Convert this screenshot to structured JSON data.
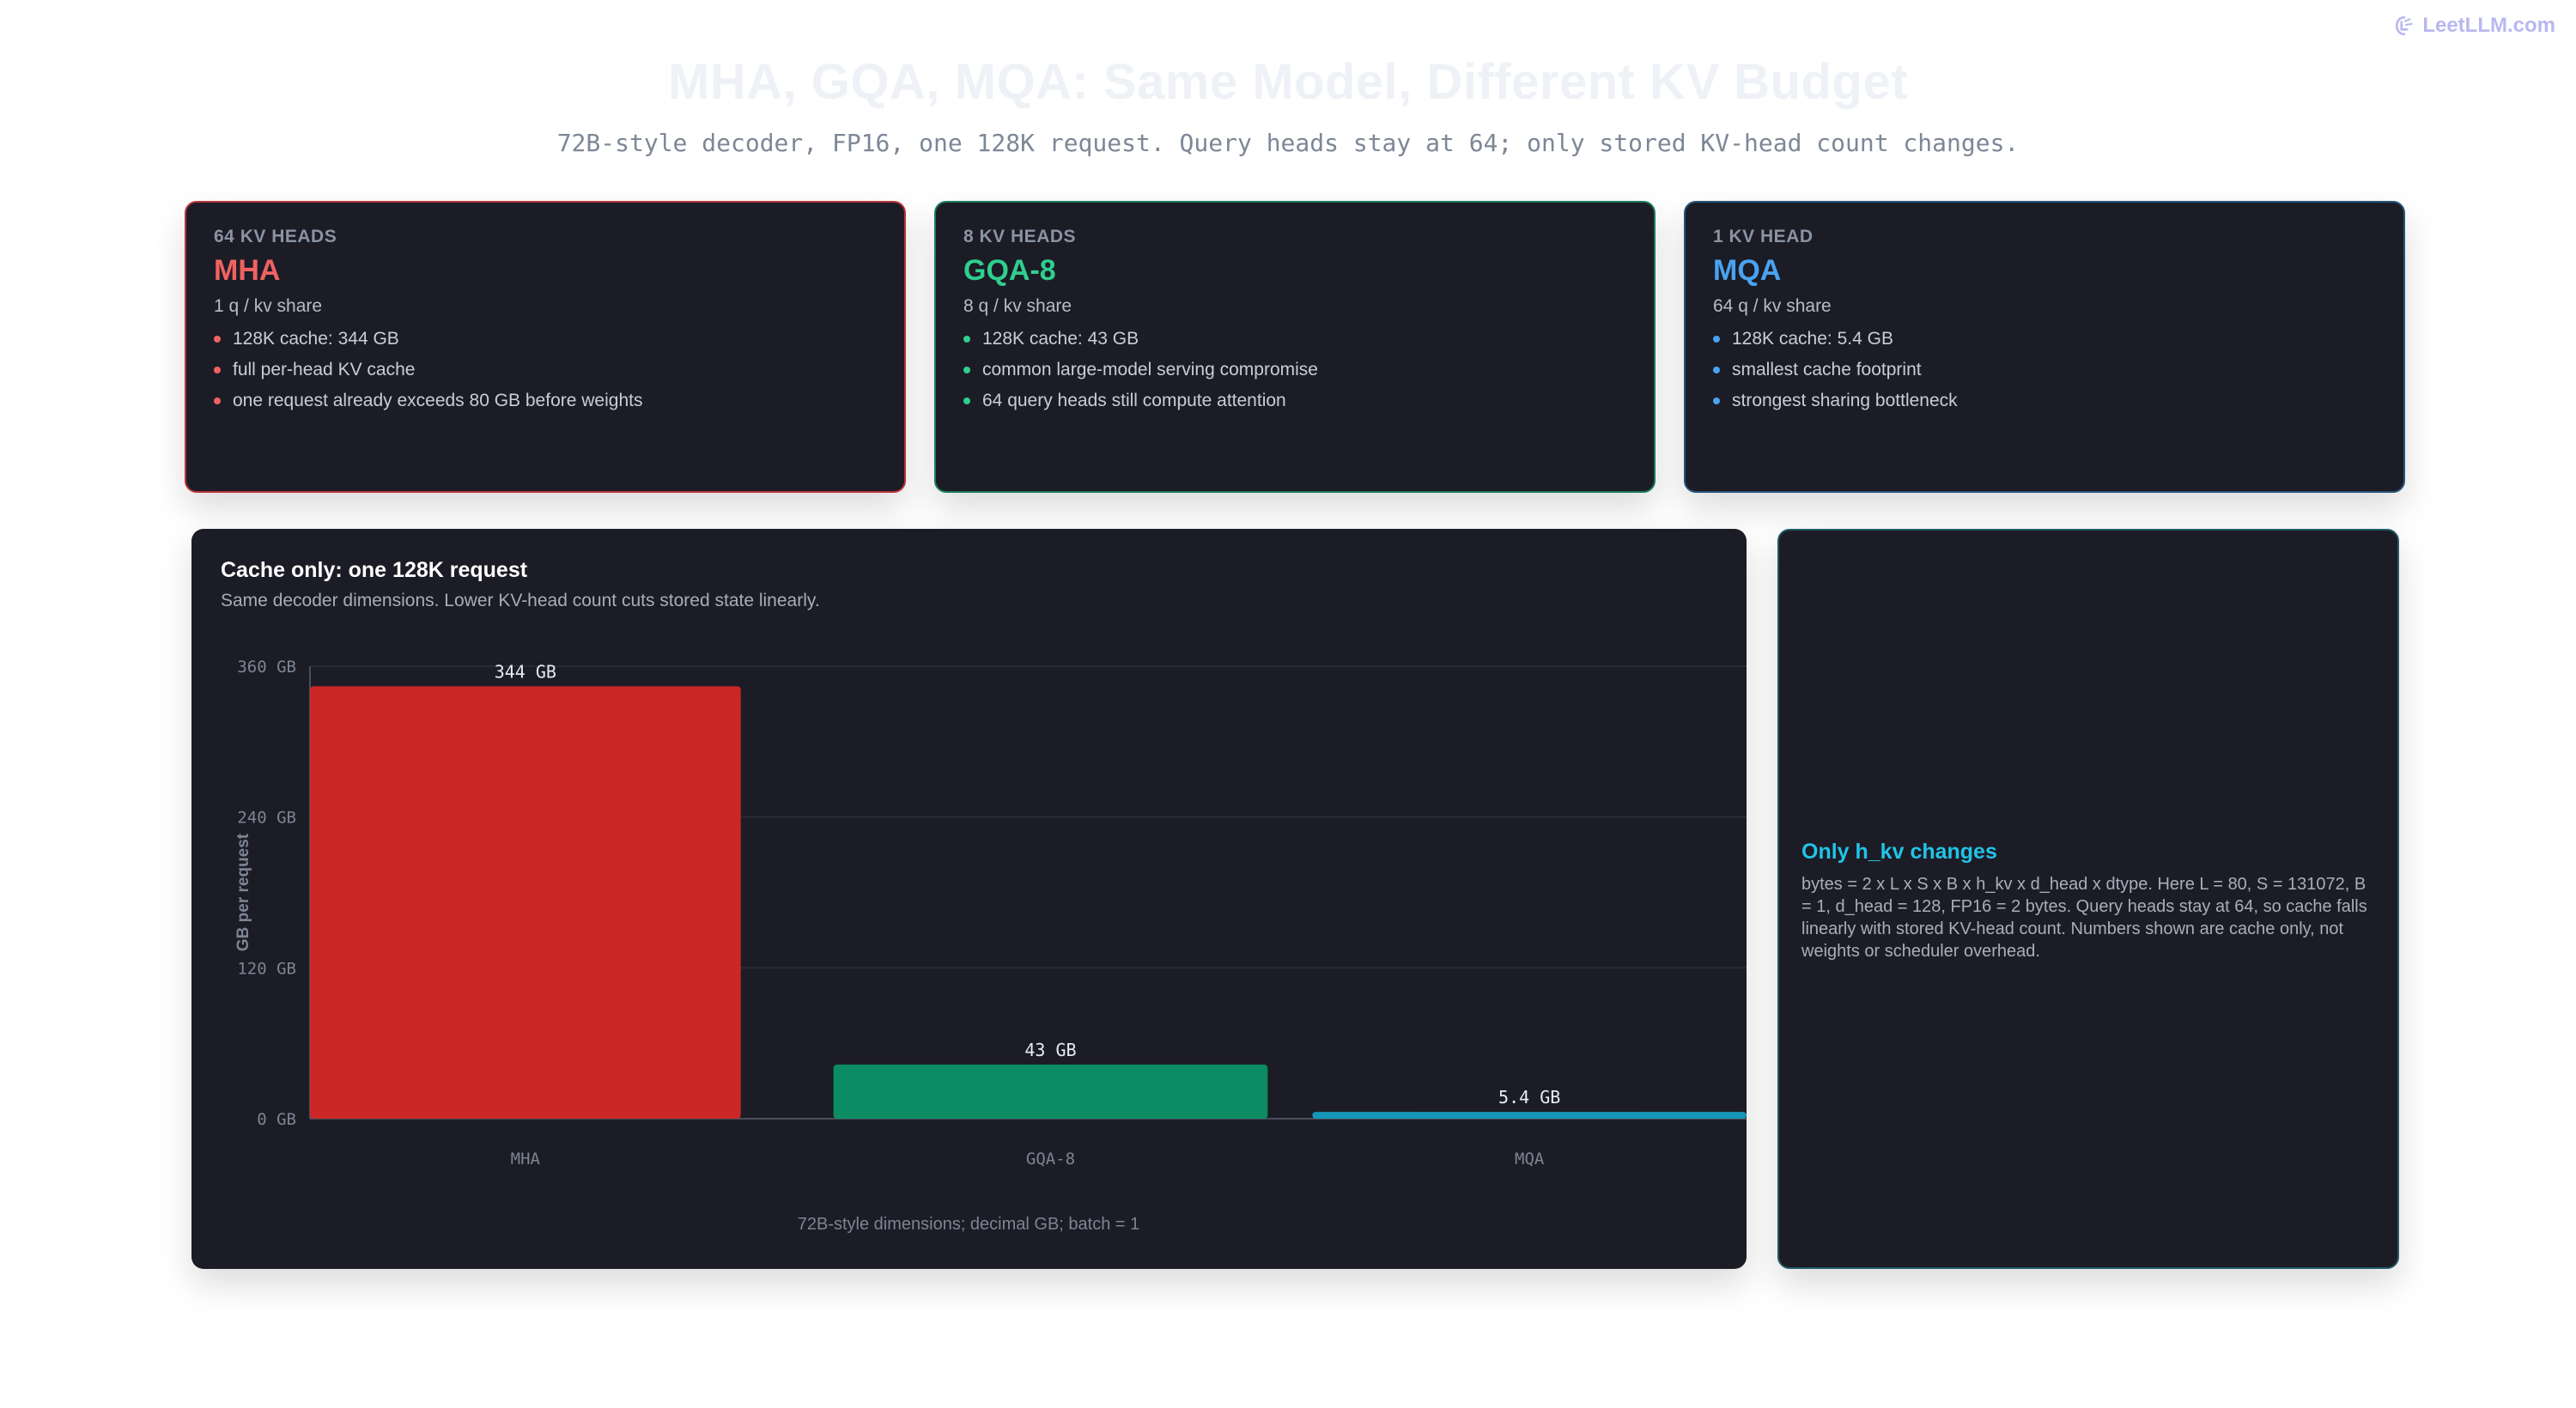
{
  "brand": {
    "text": "LeetLLM.com",
    "color": "#b9b7f0"
  },
  "header": {
    "title": "MHA, GQA, MQA: Same Model, Different KV Budget",
    "subtitle": "72B-style decoder, FP16, one 128K request. Query heads stay at 64; only stored KV-head count changes."
  },
  "cards": [
    {
      "kicker": "64 KV HEADS",
      "name": "MHA",
      "share": "1 q / kv share",
      "accent": "#f06262",
      "border": "#b5363b",
      "bullets": [
        "128K cache: 344 GB",
        "full per-head KV cache",
        "one request already exceeds 80 GB before weights"
      ]
    },
    {
      "kicker": "8 KV HEADS",
      "name": "GQA-8",
      "share": "8 q / kv share",
      "accent": "#2fcf8e",
      "border": "#1c7a5c",
      "bullets": [
        "128K cache: 43 GB",
        "common large-model serving compromise",
        "64 query heads still compute attention"
      ]
    },
    {
      "kicker": "1 KV HEAD",
      "name": "MQA",
      "share": "64 q / kv share",
      "accent": "#4aa3f0",
      "border": "#27537a",
      "bullets": [
        "128K cache: 5.4 GB",
        "smallest cache footprint",
        "strongest sharing bottleneck"
      ]
    }
  ],
  "chart_panel": {
    "title": "Cache only: one 128K request",
    "description": "Same decoder dimensions. Lower KV-head count cuts stored state linearly."
  },
  "chart_data": {
    "type": "bar",
    "categories": [
      "MHA",
      "GQA-8",
      "MQA"
    ],
    "values": [
      344,
      43,
      5.4
    ],
    "value_labels": [
      "344 GB",
      "43 GB",
      "5.4 GB"
    ],
    "colors": [
      "#cc2626",
      "#0b8c62",
      "#1596b8"
    ],
    "ylabel": "GB per request",
    "ylim": [
      0,
      360
    ],
    "yticks": [
      0,
      120,
      240,
      360
    ],
    "ytick_labels": [
      "0 GB",
      "120 GB",
      "240 GB",
      "360 GB"
    ],
    "grid": true,
    "footnote": "72B-style dimensions; decimal GB; batch = 1"
  },
  "note": {
    "title": "Only h_kv changes",
    "body": "bytes = 2 x L x S x B x h_kv x d_head x dtype. Here L = 80, S = 131072, B = 1, d_head = 128, FP16 = 2 bytes. Query heads stay at 64, so cache falls linearly with stored KV-head count. Numbers shown are cache only, not weights or scheduler overhead."
  }
}
